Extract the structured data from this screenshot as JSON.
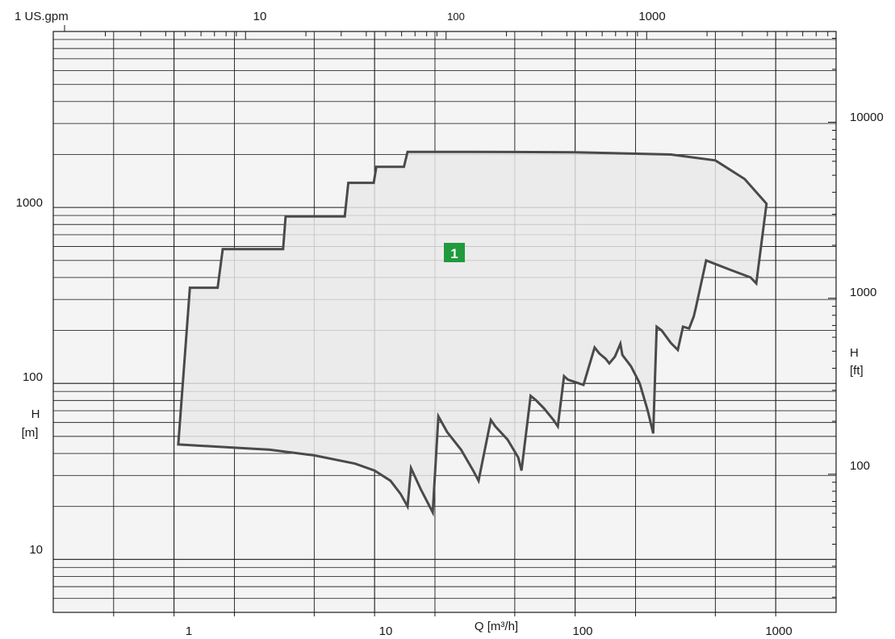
{
  "chart_data": {
    "type": "area",
    "x_axis": {
      "label": "Q [m³/h]",
      "scale": "log",
      "tick_labels": [
        "1",
        "10",
        "100",
        "1000"
      ],
      "range": [
        0.25,
        2000
      ]
    },
    "y_axis": {
      "label_line1": "H",
      "label_line2": "[m]",
      "scale": "log",
      "tick_labels": [
        "10",
        "100",
        "1000"
      ],
      "range": [
        5,
        10000
      ]
    },
    "top_axis": {
      "unit_label": "1 US.gpm",
      "tick_labels": [
        "10",
        "100",
        "1000"
      ],
      "range": [
        1.1,
        8800
      ]
    },
    "right_axis": {
      "label_line1": "H",
      "label_line2": "[ft]",
      "tick_labels": [
        "100",
        "1000",
        "10000"
      ],
      "range": [
        16.4,
        32800
      ]
    },
    "grid": true,
    "region": {
      "label": "1",
      "label_color": "#1f9a3c",
      "fill_color": "#e9e9e9",
      "stroke_color": "#4a4a4a",
      "outline": [
        [
          1.05,
          45
        ],
        [
          1.2,
          350
        ],
        [
          1.65,
          350
        ],
        [
          1.75,
          580
        ],
        [
          3.5,
          580
        ],
        [
          3.6,
          890
        ],
        [
          7.1,
          890
        ],
        [
          7.4,
          1380
        ],
        [
          9.9,
          1380
        ],
        [
          10.2,
          1700
        ],
        [
          14,
          1700
        ],
        [
          14.6,
          2070
        ],
        [
          30,
          2070
        ],
        [
          100,
          2060
        ],
        [
          300,
          2000
        ],
        [
          500,
          1850
        ],
        [
          700,
          1450
        ],
        [
          900,
          1050
        ],
        [
          800,
          370
        ],
        [
          750,
          400
        ],
        [
          600,
          440
        ],
        [
          450,
          500
        ],
        [
          400,
          270
        ],
        [
          390,
          240
        ],
        [
          370,
          205
        ],
        [
          345,
          210
        ],
        [
          325,
          155
        ],
        [
          300,
          170
        ],
        [
          270,
          200
        ],
        [
          255,
          210
        ],
        [
          245,
          52
        ],
        [
          230,
          70
        ],
        [
          210,
          100
        ],
        [
          190,
          125
        ],
        [
          172,
          145
        ],
        [
          168,
          168
        ],
        [
          158,
          142
        ],
        [
          148,
          130
        ],
        [
          142,
          138
        ],
        [
          132,
          148
        ],
        [
          125,
          160
        ],
        [
          110,
          98
        ],
        [
          92,
          105
        ],
        [
          88,
          110
        ],
        [
          82,
          57
        ],
        [
          78,
          62
        ],
        [
          70,
          72
        ],
        [
          64,
          80
        ],
        [
          60,
          85
        ],
        [
          54,
          32
        ],
        [
          52,
          38
        ],
        [
          46,
          48
        ],
        [
          40,
          57
        ],
        [
          38,
          62
        ],
        [
          33,
          28
        ],
        [
          31,
          32
        ],
        [
          27,
          42
        ],
        [
          23,
          53
        ],
        [
          20.8,
          65
        ],
        [
          19.5,
          18.5
        ],
        [
          17,
          25
        ],
        [
          15.2,
          33
        ],
        [
          14.6,
          20
        ],
        [
          13.5,
          23.5
        ],
        [
          12,
          28
        ],
        [
          10,
          32
        ],
        [
          8,
          35
        ],
        [
          5,
          39
        ],
        [
          3,
          42
        ],
        [
          1.05,
          45
        ]
      ]
    }
  }
}
